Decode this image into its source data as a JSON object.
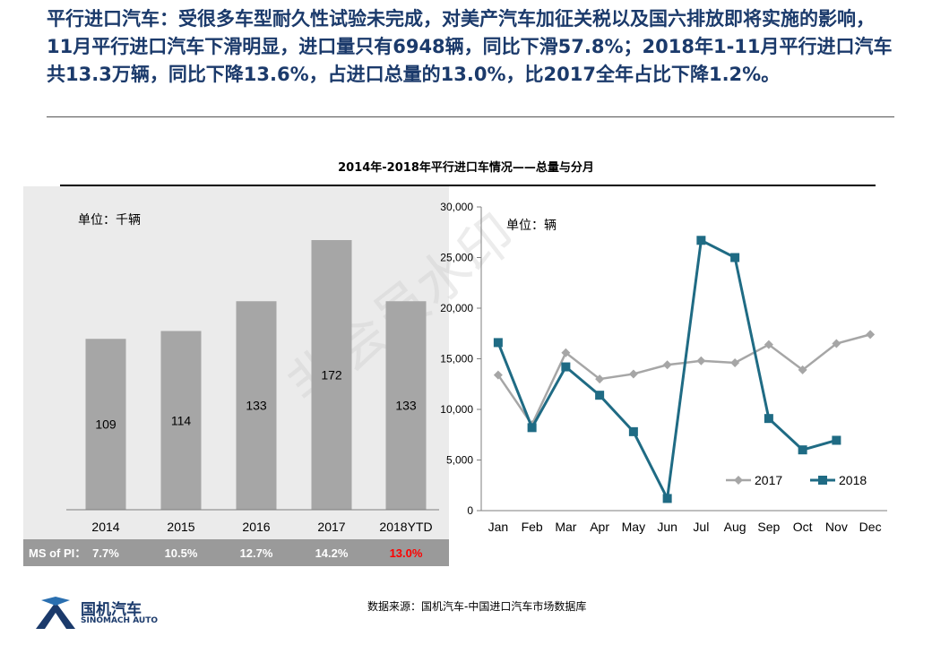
{
  "headline": {
    "text": "平行进口汽车：受很多车型耐久性试验未完成，对美产汽车加征关税以及国六排放即将实施的影响，11月平行进口汽车下滑明显，进口量只有6948辆，同比下滑57.8%；2018年1-11月平行进口汽车共13.3万辆，同比下降13.6%，占进口总量的13.0%，比2017全年占比下降1.2%。"
  },
  "chart_title": "2014年-2018年平行进口车情况——总量与分月",
  "watermark": "非会员水印",
  "source": "数据来源：国机汽车-中国进口汽车市场数据库",
  "logo": {
    "cn": "国机汽车",
    "en": "SINOMACH AUTO"
  },
  "colors": {
    "bar": "#a6a6a6",
    "panel": "#ebebeb",
    "ms_strip": "#9a9a9a",
    "series_2017": "#a6a6a6",
    "series_2018": "#1f6b84",
    "ms_highlight": "#ff0000",
    "brand": "#1b3a6b"
  },
  "chart_data": [
    {
      "type": "bar",
      "unit_label": "单位：千辆",
      "categories": [
        "2014",
        "2015",
        "2016",
        "2017",
        "2018YTD"
      ],
      "values": [
        109,
        114,
        133,
        172,
        133
      ],
      "ylim": [
        0,
        200
      ],
      "ms_label": "MS of PI：",
      "ms_values": [
        "7.7%",
        "10.5%",
        "12.7%",
        "14.2%",
        "13.0%"
      ],
      "ms_highlight_index": 4,
      "grid": false
    },
    {
      "type": "line",
      "unit_label": "单位：辆",
      "categories": [
        "Jan",
        "Feb",
        "Mar",
        "Apr",
        "May",
        "Jun",
        "Jul",
        "Aug",
        "Sep",
        "Oct",
        "Nov",
        "Dec"
      ],
      "ylim": [
        0,
        30000
      ],
      "yticks": [
        0,
        5000,
        10000,
        15000,
        20000,
        25000,
        30000
      ],
      "ytick_labels": [
        "0",
        "5,000",
        "10,000",
        "15,000",
        "20,000",
        "25,000",
        "30,000"
      ],
      "legend_position": "bottom-right",
      "grid": false,
      "series": [
        {
          "name": "2017",
          "marker": "diamond",
          "values": [
            13400,
            8500,
            15600,
            13000,
            13500,
            14400,
            14800,
            14600,
            16400,
            13900,
            16500,
            17400
          ]
        },
        {
          "name": "2018",
          "marker": "square",
          "values": [
            16600,
            8200,
            14200,
            11400,
            7800,
            1200,
            26700,
            25000,
            9100,
            6000,
            6948,
            null
          ]
        }
      ]
    }
  ]
}
